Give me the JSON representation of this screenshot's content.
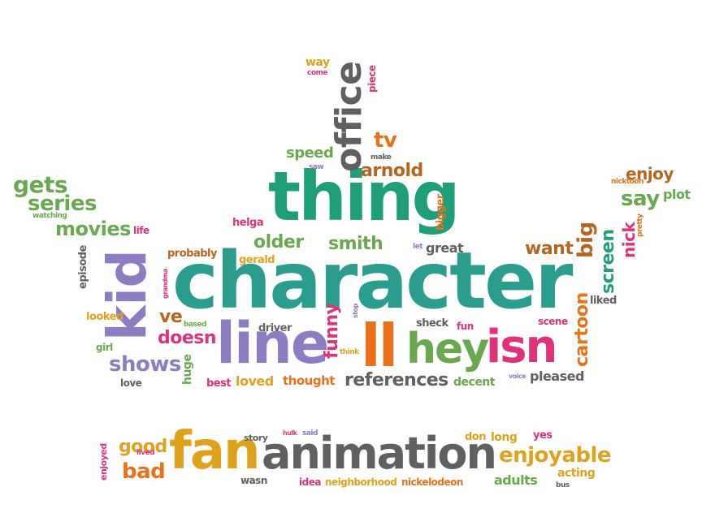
{
  "words": [
    {
      "text": "character",
      "color": "green"
    },
    {
      "text": "thing",
      "color": "teal"
    },
    {
      "text": "office",
      "color": "gray"
    },
    {
      "text": "kid",
      "color": "purple"
    },
    {
      "text": "line",
      "color": "purple"
    },
    {
      "text": "ll",
      "color": "orange"
    },
    {
      "text": "hey",
      "color": "lime"
    },
    {
      "text": "isn",
      "color": "pink"
    },
    {
      "text": "fan",
      "color": "gold"
    },
    {
      "text": "animation",
      "color": "gray"
    },
    {
      "text": "enjoyable",
      "color": "gold"
    },
    {
      "text": "cartoon",
      "color": "orange"
    },
    {
      "text": "screen",
      "color": "teal"
    },
    {
      "text": "big",
      "color": "brown"
    },
    {
      "text": "nick",
      "color": "pink"
    },
    {
      "text": "gets",
      "color": "lime"
    },
    {
      "text": "series",
      "color": "lime"
    },
    {
      "text": "movies",
      "color": "lime"
    },
    {
      "text": "shows",
      "color": "purple"
    },
    {
      "text": "funny",
      "color": "pink"
    },
    {
      "text": "references",
      "color": "gray"
    },
    {
      "text": "smith",
      "color": "lime"
    },
    {
      "text": "older",
      "color": "lime"
    },
    {
      "text": "arnold",
      "color": "brown"
    },
    {
      "text": "speed",
      "color": "lime"
    },
    {
      "text": "tv",
      "color": "orange"
    },
    {
      "text": "say",
      "color": "lime"
    },
    {
      "text": "plot",
      "color": "lime"
    },
    {
      "text": "enjoy",
      "color": "brown"
    },
    {
      "text": "want",
      "color": "brown"
    },
    {
      "text": "doesn",
      "color": "pink"
    },
    {
      "text": "ve",
      "color": "brown"
    },
    {
      "text": "good",
      "color": "gold"
    },
    {
      "text": "bad",
      "color": "orange"
    },
    {
      "text": "way",
      "color": "gold"
    },
    {
      "text": "piece",
      "color": "pink"
    },
    {
      "text": "come",
      "color": "pink"
    },
    {
      "text": "make",
      "color": "gray"
    },
    {
      "text": "saw",
      "color": "purple"
    },
    {
      "text": "helga",
      "color": "pink"
    },
    {
      "text": "probably",
      "color": "brown"
    },
    {
      "text": "gerald",
      "color": "gold"
    },
    {
      "text": "great",
      "color": "gray"
    },
    {
      "text": "let",
      "color": "purple"
    },
    {
      "text": "bigger",
      "color": "orange"
    },
    {
      "text": "episode",
      "color": "gray"
    },
    {
      "text": "life",
      "color": "pink"
    },
    {
      "text": "watching",
      "color": "lime"
    },
    {
      "text": "nicktoon",
      "color": "orange"
    },
    {
      "text": "pretty",
      "color": "orange"
    },
    {
      "text": "grandma",
      "color": "pink"
    },
    {
      "text": "looked",
      "color": "gold"
    },
    {
      "text": "based",
      "color": "lime"
    },
    {
      "text": "girl",
      "color": "lime"
    },
    {
      "text": "driver",
      "color": "gray"
    },
    {
      "text": "stop",
      "color": "purple"
    },
    {
      "text": "think",
      "color": "gold"
    },
    {
      "text": "sheck",
      "color": "gray"
    },
    {
      "text": "fun",
      "color": "pink"
    },
    {
      "text": "scene",
      "color": "pink"
    },
    {
      "text": "liked",
      "color": "gray"
    },
    {
      "text": "huge",
      "color": "lime"
    },
    {
      "text": "love",
      "color": "gray"
    },
    {
      "text": "best",
      "color": "pink"
    },
    {
      "text": "loved",
      "color": "gold"
    },
    {
      "text": "thought",
      "color": "orange"
    },
    {
      "text": "decent",
      "color": "lime"
    },
    {
      "text": "voice",
      "color": "purple"
    },
    {
      "text": "pleased",
      "color": "gray"
    },
    {
      "text": "story",
      "color": "gray"
    },
    {
      "text": "hulk",
      "color": "pink"
    },
    {
      "text": "said",
      "color": "purple"
    },
    {
      "text": "don",
      "color": "gold"
    },
    {
      "text": "long",
      "color": "gold"
    },
    {
      "text": "yes",
      "color": "pink"
    },
    {
      "text": "enjoyed",
      "color": "pink"
    },
    {
      "text": "lived",
      "color": "pink"
    },
    {
      "text": "acting",
      "color": "gold"
    },
    {
      "text": "adults",
      "color": "lime"
    },
    {
      "text": "bus",
      "color": "gray"
    },
    {
      "text": "wasn",
      "color": "gray"
    },
    {
      "text": "idea",
      "color": "pink"
    },
    {
      "text": "neighborhood",
      "color": "gold"
    },
    {
      "text": "nickelodeon",
      "color": "orange"
    }
  ]
}
